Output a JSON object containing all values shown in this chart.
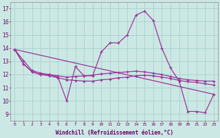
{
  "xlabel": "Windchill (Refroidissement éolien,°C)",
  "background_color": "#cce8e4",
  "grid_color": "#aad4d0",
  "line_color": "#993399",
  "x_ticks": [
    0,
    1,
    2,
    3,
    4,
    5,
    6,
    7,
    8,
    9,
    10,
    11,
    12,
    13,
    14,
    15,
    16,
    17,
    18,
    19,
    20,
    21,
    22,
    23
  ],
  "y_ticks": [
    9,
    10,
    11,
    12,
    13,
    14,
    15,
    16,
    17
  ],
  "ylim": [
    8.5,
    17.5
  ],
  "xlim": [
    -0.5,
    23.5
  ],
  "curves": [
    {
      "x": [
        0,
        1,
        2,
        3,
        4,
        5,
        6,
        7,
        8,
        9,
        10,
        11,
        12,
        13,
        14,
        15,
        16,
        17,
        18,
        19,
        20,
        21,
        22,
        23
      ],
      "y": [
        13.9,
        12.8,
        12.2,
        12.0,
        12.0,
        11.8,
        10.0,
        12.6,
        11.9,
        11.9,
        13.7,
        14.4,
        14.4,
        15.0,
        16.5,
        16.8,
        16.1,
        14.0,
        12.5,
        11.5,
        9.2,
        9.2,
        9.1,
        10.5
      ],
      "marker": true
    },
    {
      "x": [
        0,
        1,
        2,
        3,
        4,
        5,
        6,
        7,
        8,
        9,
        10,
        11,
        12,
        13,
        14,
        15,
        16,
        17,
        18,
        19,
        20,
        21,
        22,
        23
      ],
      "y": [
        13.9,
        12.8,
        12.2,
        12.0,
        11.9,
        11.75,
        11.6,
        11.55,
        11.5,
        11.5,
        11.6,
        11.65,
        11.75,
        11.8,
        11.9,
        11.95,
        11.9,
        11.8,
        11.7,
        11.55,
        11.45,
        11.4,
        11.3,
        11.2
      ],
      "marker": true
    },
    {
      "x": [
        0,
        1,
        2,
        3,
        4,
        5,
        6,
        7,
        8,
        9,
        10,
        11,
        12,
        13,
        14,
        15,
        16,
        17,
        18,
        19,
        20,
        21,
        22,
        23
      ],
      "y": [
        13.9,
        13.05,
        12.3,
        12.1,
        12.0,
        11.9,
        11.8,
        11.85,
        11.9,
        11.95,
        12.05,
        12.1,
        12.15,
        12.2,
        12.25,
        12.2,
        12.1,
        12.0,
        11.85,
        11.7,
        11.6,
        11.55,
        11.5,
        11.5
      ],
      "marker": true
    },
    {
      "x": [
        0,
        23
      ],
      "y": [
        13.9,
        10.5
      ],
      "marker": false
    }
  ]
}
